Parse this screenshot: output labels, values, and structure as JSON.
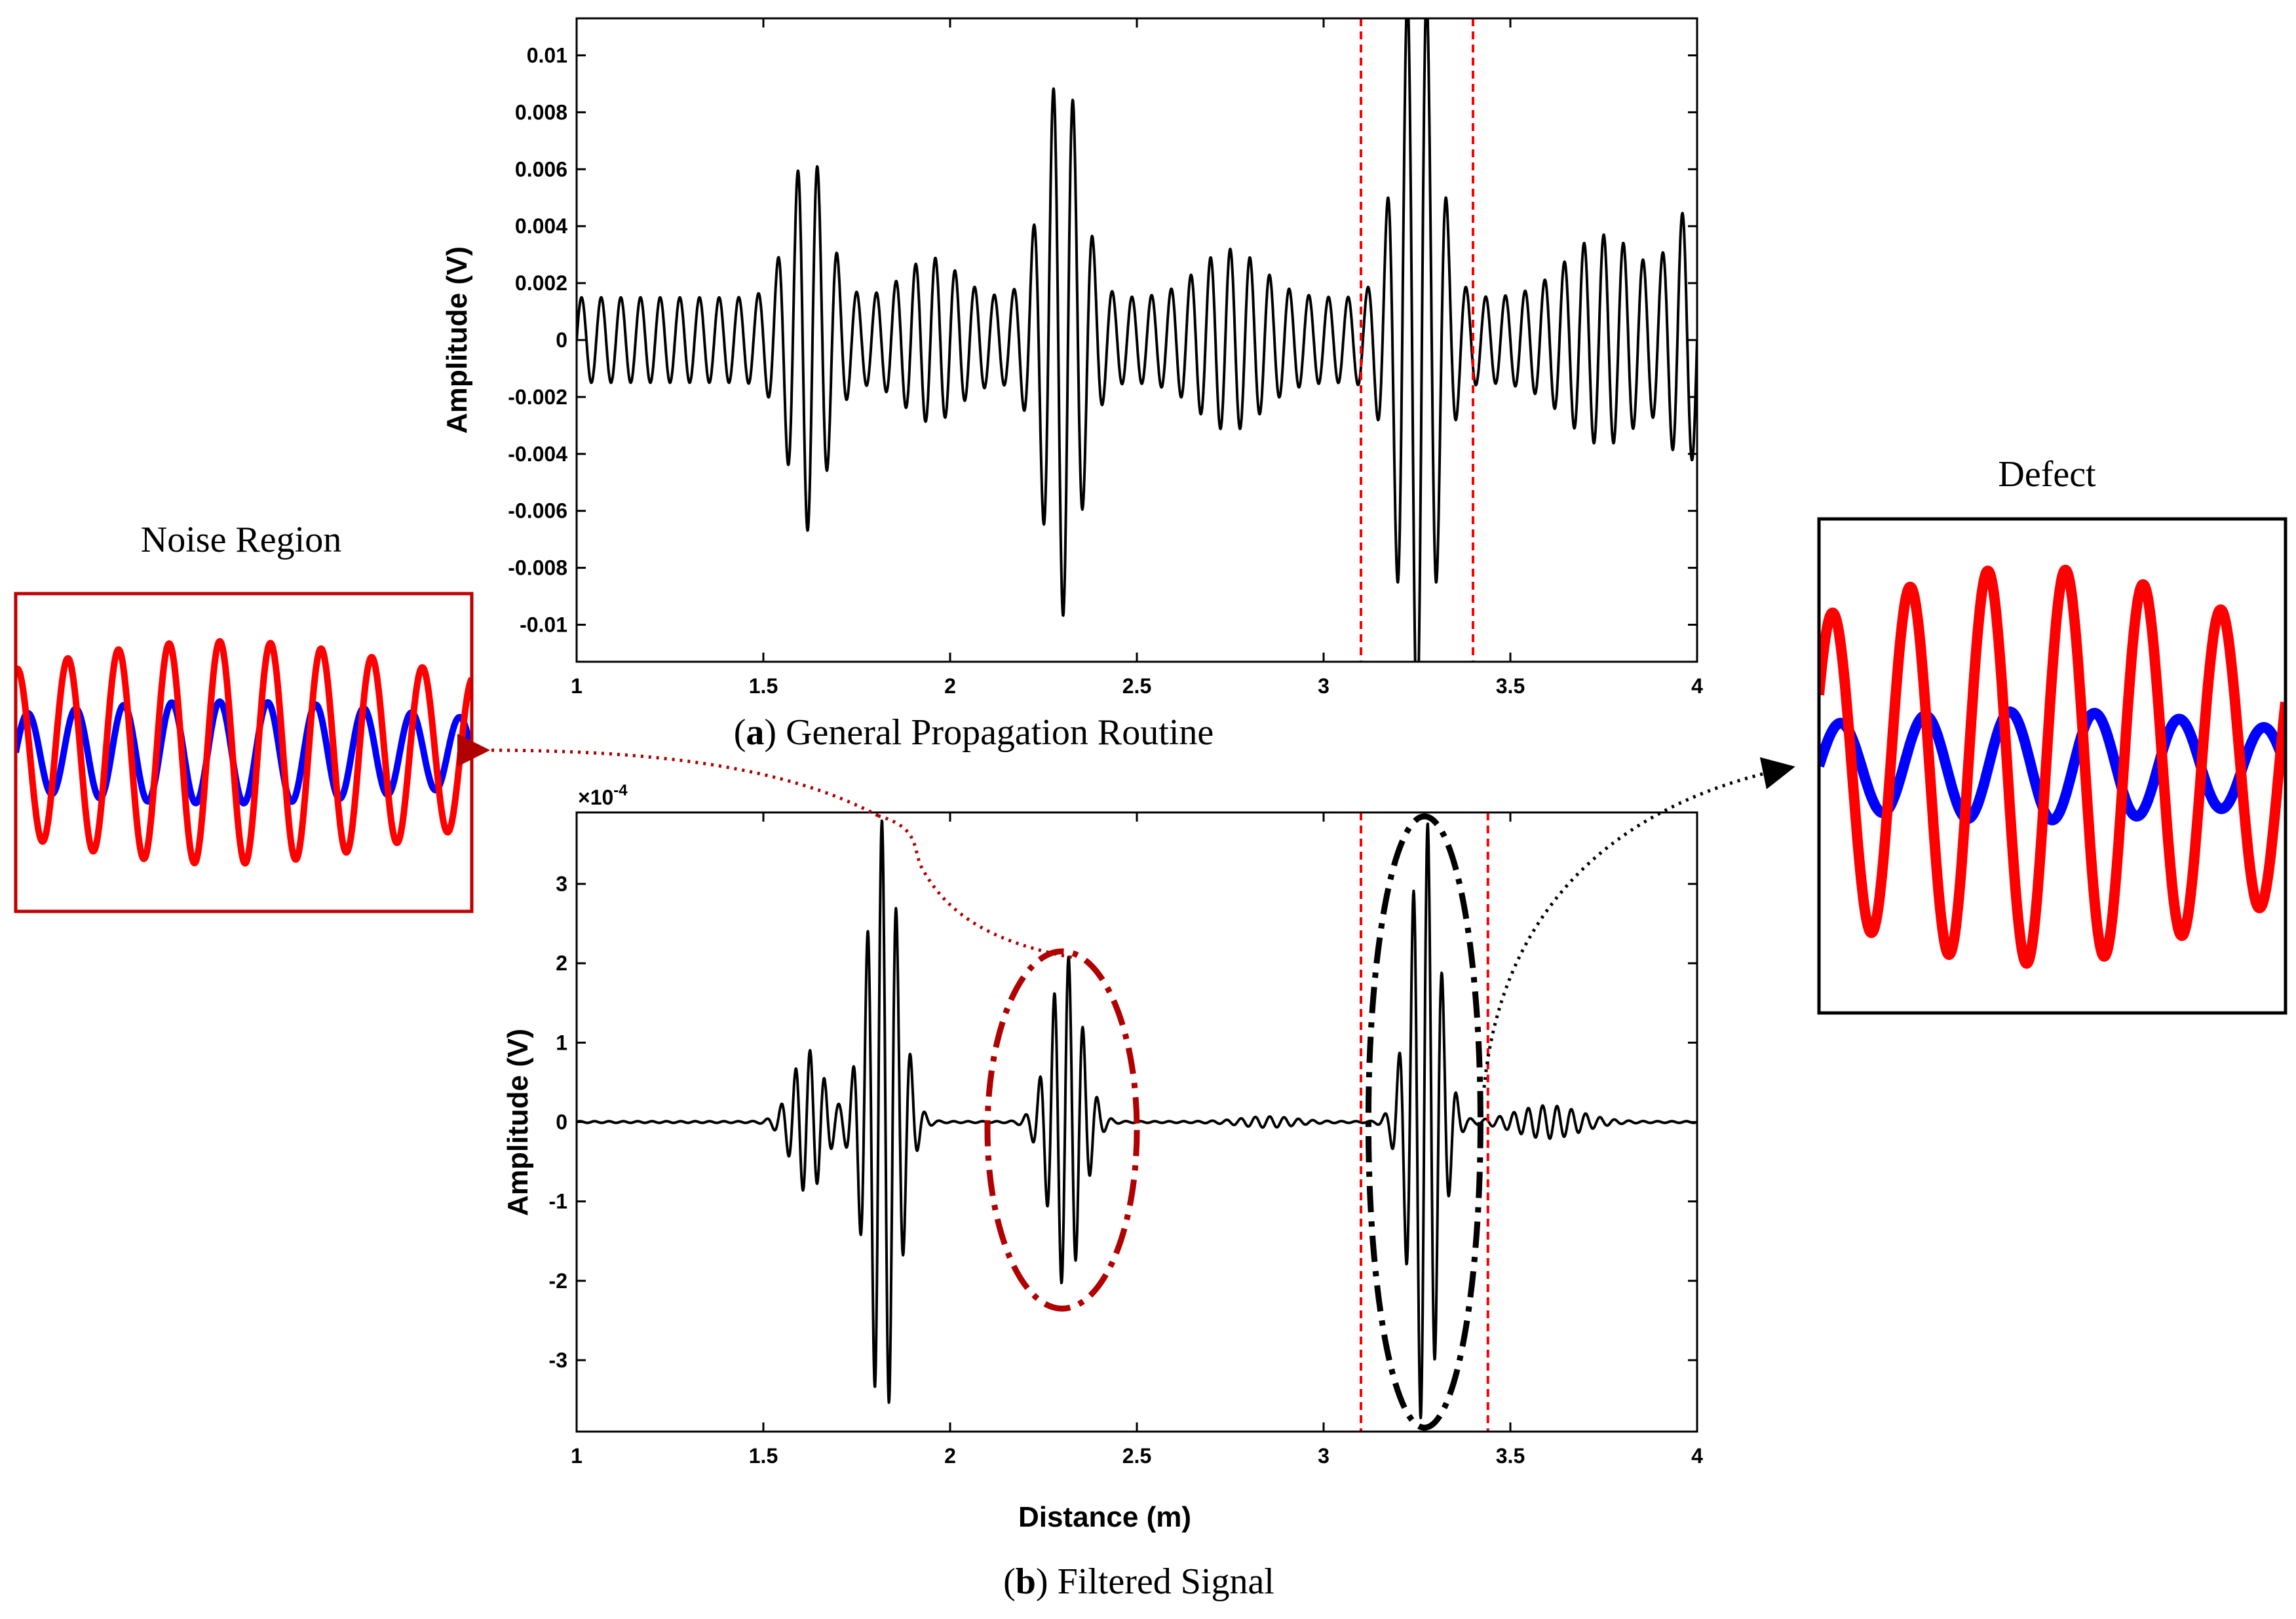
{
  "figure": {
    "caption_a": {
      "open": "(",
      "letter": "a",
      "rest": ") General Propagation Routine"
    },
    "caption_b": {
      "open": "(",
      "letter": "b",
      "rest": ") Filtered Signal"
    },
    "noise_title": "Noise Region",
    "defect_title": "Defect",
    "colors": {
      "signal": "#000000",
      "marker": "#ff0000",
      "noise_frame": "#c00000",
      "blue": "#0000ff",
      "red": "#ff0000",
      "dark_red": "#b00000"
    }
  },
  "chart_data": [
    {
      "id": "a",
      "type": "line",
      "title": "(a) General Propagation Routine",
      "xlabel": "",
      "ylabel": "Amplitude (V)",
      "xlim": [
        1,
        4
      ],
      "ylim": [
        -0.0113,
        0.0113
      ],
      "xticks": [
        1,
        1.5,
        2,
        2.5,
        3,
        3.5,
        4
      ],
      "xtick_labels": [
        "1",
        "1.5",
        "2",
        "2.5",
        "3",
        "3.5",
        "4"
      ],
      "yticks": [
        0.01,
        0.008,
        0.006,
        0.004,
        0.002,
        0,
        -0.002,
        -0.004,
        -0.006,
        -0.008,
        -0.01
      ],
      "ytick_labels": [
        "0.01",
        "0.008",
        "0.006",
        "0.004",
        "0.002",
        "0",
        "-0.002",
        "-0.004",
        "-0.006",
        "-0.008",
        "-0.01"
      ],
      "markers": [
        3.1,
        3.4
      ],
      "signal": {
        "freq_cycles_per_m": 19,
        "base_amplitude": 0.0015,
        "packets": [
          {
            "center": 1.62,
            "amp": 0.0052,
            "width": 0.07
          },
          {
            "center": 2.3,
            "amp": 0.0082,
            "width": 0.07
          },
          {
            "center": 3.25,
            "amp": 0.0122,
            "width": 0.07
          },
          {
            "center": 3.75,
            "amp": 0.0022,
            "width": 0.14
          },
          {
            "center": 2.75,
            "amp": 0.0017,
            "width": 0.12
          },
          {
            "center": 1.95,
            "amp": 0.0014,
            "width": 0.1
          },
          {
            "center": 3.97,
            "amp": 0.0028,
            "width": 0.06
          }
        ]
      }
    },
    {
      "id": "b",
      "type": "line",
      "title": "(b) Filtered Signal",
      "xlabel": "Distance (m)",
      "ylabel": "Amplitude (V)",
      "exponent_label": {
        "base": "×10",
        "exp": "-4"
      },
      "xlim": [
        1,
        4
      ],
      "ylim": [
        -3.9,
        3.9
      ],
      "xticks": [
        1,
        1.5,
        2,
        2.5,
        3,
        3.5,
        4
      ],
      "xtick_labels": [
        "1",
        "1.5",
        "2",
        "2.5",
        "3",
        "3.5",
        "4"
      ],
      "yticks": [
        3,
        2,
        1,
        0,
        -1,
        -2,
        -3
      ],
      "ytick_labels": [
        "3",
        "2",
        "1",
        "0",
        "-1",
        "-2",
        "-3"
      ],
      "markers": [
        3.1,
        3.44
      ],
      "signal": {
        "freq_cycles_per_m": 26,
        "base_amplitude": 0.01,
        "packets": [
          {
            "center": 1.82,
            "amp": 3.8,
            "width": 0.06
          },
          {
            "center": 1.62,
            "amp": 0.9,
            "width": 0.06
          },
          {
            "center": 2.31,
            "amp": 2.1,
            "width": 0.06
          },
          {
            "center": 3.27,
            "amp": 3.85,
            "width": 0.055
          },
          {
            "center": 3.6,
            "amp": 0.2,
            "width": 0.12
          },
          {
            "center": 2.85,
            "amp": 0.06,
            "width": 0.1
          }
        ]
      },
      "annotations": [
        {
          "type": "ellipse",
          "cx": 2.3,
          "cy": -0.1,
          "rx": 0.2,
          "ry": 2.25,
          "color": "dark-red"
        },
        {
          "type": "ellipse",
          "cx": 3.27,
          "cy": 0.0,
          "rx": 0.15,
          "ry": 3.85,
          "color": "black"
        }
      ]
    },
    {
      "id": "noise-inset",
      "type": "line",
      "title": "Noise Region",
      "series": [
        {
          "name": "blue",
          "color": "#0000ff",
          "cycles": 9.5,
          "amp": 0.32,
          "phase": 0.0
        },
        {
          "name": "red",
          "color": "#ff0000",
          "cycles": 9.0,
          "amp": 0.7,
          "phase": 1.4
        }
      ]
    },
    {
      "id": "defect-inset",
      "type": "line",
      "title": "Defect",
      "series": [
        {
          "name": "blue",
          "color": "#0000ff",
          "cycles": 5.5,
          "amp": 0.22,
          "phase": 0.0
        },
        {
          "name": "red",
          "color": "#ff0000",
          "cycles": 6.0,
          "amp": 0.8,
          "phase": 0.5
        }
      ]
    }
  ]
}
